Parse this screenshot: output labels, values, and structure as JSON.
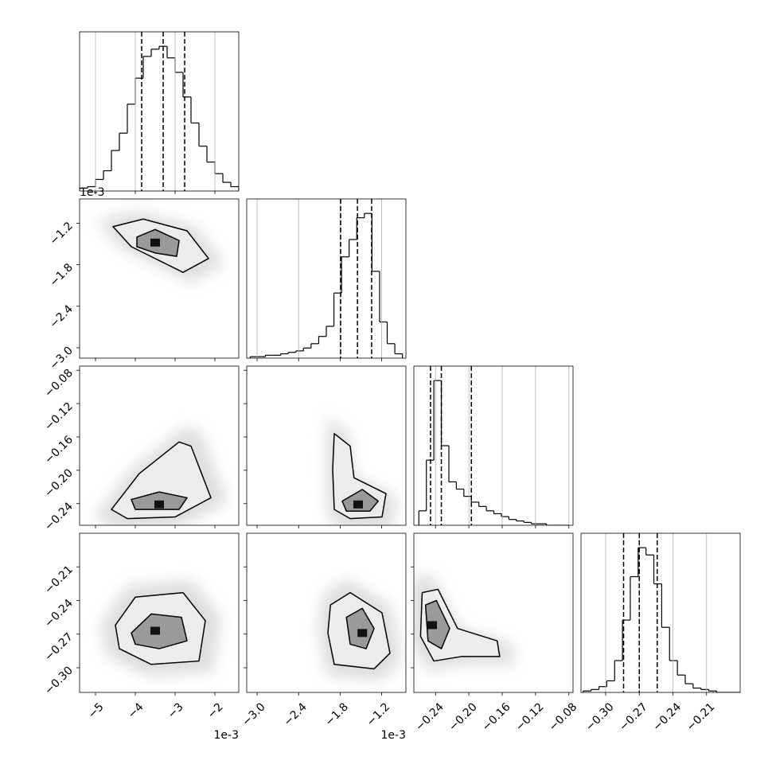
{
  "chart_data": {
    "type": "corner",
    "params": [
      {
        "lim": [
          -5.4,
          -1.4
        ],
        "ticks": [
          {
            "value": -5,
            "label": "−5"
          },
          {
            "value": -4,
            "label": "−4"
          },
          {
            "value": -3,
            "label": "−3"
          },
          {
            "value": -2,
            "label": "−2"
          }
        ],
        "offset": "1e-3"
      },
      {
        "lim": [
          -3.15,
          -0.85
        ],
        "ticks": [
          {
            "value": -3.0,
            "label": "−3.0"
          },
          {
            "value": -2.4,
            "label": "−2.4"
          },
          {
            "value": -1.8,
            "label": "−1.8"
          },
          {
            "value": -1.2,
            "label": "−1.2"
          }
        ],
        "offset": "1e-3"
      },
      {
        "lim": [
          -0.266,
          -0.075
        ],
        "ticks": [
          {
            "value": -0.24,
            "label": "−0.24"
          },
          {
            "value": -0.2,
            "label": "−0.20"
          },
          {
            "value": -0.16,
            "label": "−0.16"
          },
          {
            "value": -0.12,
            "label": "−0.12"
          },
          {
            "value": -0.08,
            "label": "−0.08"
          }
        ]
      },
      {
        "lim": [
          -0.322,
          -0.18
        ],
        "ticks": [
          {
            "value": -0.3,
            "label": "−0.30"
          },
          {
            "value": -0.27,
            "label": "−0.27"
          },
          {
            "value": -0.24,
            "label": "−0.24"
          },
          {
            "value": -0.21,
            "label": "−0.21"
          }
        ]
      }
    ],
    "histograms": [
      {
        "bins": [
          -5.4,
          -5.2,
          -5.0,
          -4.8,
          -4.6,
          -4.4,
          -4.2,
          -4.0,
          -3.8,
          -3.6,
          -3.4,
          -3.2,
          -3.0,
          -2.8,
          -2.6,
          -2.4,
          -2.2,
          -2.0,
          -1.8,
          -1.6,
          -1.4
        ],
        "counts": [
          2,
          3,
          8,
          14,
          28,
          40,
          60,
          78,
          93,
          98,
          100,
          92,
          82,
          65,
          47,
          31,
          20,
          12,
          6,
          3
        ],
        "ylim": [
          0,
          110
        ],
        "quantiles": [
          -3.84,
          -3.3,
          -2.76
        ]
      },
      {
        "bins": [
          -3.1,
          -2.99,
          -2.88,
          -2.77,
          -2.66,
          -2.55,
          -2.44,
          -2.33,
          -2.22,
          -2.11,
          -2.0,
          -1.89,
          -1.78,
          -1.67,
          -1.56,
          -1.45,
          -1.34,
          -1.23,
          -1.12,
          -1.01,
          -0.9
        ],
        "counts": [
          1,
          1,
          2,
          2,
          3,
          4,
          5,
          7,
          10,
          15,
          22,
          45,
          70,
          82,
          97,
          100,
          60,
          25,
          10,
          3
        ],
        "ylim": [
          0,
          110
        ],
        "quantiles": [
          -1.793,
          -1.55,
          -1.345
        ]
      },
      {
        "bins": [
          -0.26,
          -0.251,
          -0.242,
          -0.233,
          -0.224,
          -0.215,
          -0.206,
          -0.197,
          -0.188,
          -0.179,
          -0.17,
          -0.161,
          -0.152,
          -0.143,
          -0.134,
          -0.125,
          -0.116,
          -0.107,
          -0.098,
          -0.089,
          -0.08
        ],
        "counts": [
          10,
          45,
          100,
          55,
          30,
          25,
          20,
          16,
          13,
          10,
          8,
          6,
          4,
          3,
          2,
          1,
          1,
          0,
          0,
          0
        ],
        "ylim": [
          0,
          110
        ],
        "quantiles": [
          -0.246,
          -0.233,
          -0.197
        ]
      },
      {
        "bins": [
          -0.32,
          -0.313,
          -0.306,
          -0.299,
          -0.292,
          -0.285,
          -0.278,
          -0.271,
          -0.264,
          -0.257,
          -0.25,
          -0.243,
          -0.236,
          -0.229,
          -0.222,
          -0.215,
          -0.208,
          -0.201,
          -0.194,
          -0.187,
          -0.18
        ],
        "counts": [
          1,
          2,
          4,
          8,
          22,
          50,
          80,
          100,
          95,
          75,
          45,
          22,
          12,
          6,
          3,
          2,
          1,
          0,
          0,
          0
        ],
        "ylim": [
          0,
          110
        ],
        "quantiles": [
          -0.284,
          -0.27,
          -0.254
        ]
      }
    ],
    "pairs": [
      {
        "contours": [
          [
            [
              -4.56,
              -1.25
            ],
            [
              -3.8,
              -1.14
            ],
            [
              -2.7,
              -1.31
            ],
            [
              -2.16,
              -1.71
            ],
            [
              -2.8,
              -1.91
            ],
            [
              -4.1,
              -1.54
            ]
          ],
          [
            [
              -3.96,
              -1.4
            ],
            [
              -3.5,
              -1.29
            ],
            [
              -2.9,
              -1.45
            ],
            [
              -2.96,
              -1.68
            ],
            [
              -3.5,
              -1.63
            ],
            [
              -3.96,
              -1.54
            ]
          ]
        ],
        "peak": [
          -3.5,
          -1.48
        ]
      },
      {
        "contours": [
          [
            [
              -4.6,
              -0.247
            ],
            [
              -3.9,
              -0.204
            ],
            [
              -2.9,
              -0.166
            ],
            [
              -2.6,
              -0.171
            ],
            [
              -2.1,
              -0.233
            ],
            [
              -3.0,
              -0.256
            ],
            [
              -4.2,
              -0.258
            ]
          ],
          [
            [
              -4.1,
              -0.235
            ],
            [
              -3.4,
              -0.226
            ],
            [
              -2.7,
              -0.233
            ],
            [
              -2.9,
              -0.247
            ],
            [
              -4.0,
              -0.247
            ]
          ]
        ],
        "peak": [
          -3.4,
          -0.241
        ]
      },
      {
        "contours": [
          [
            [
              -1.885,
              -0.156
            ],
            [
              -1.655,
              -0.171
            ],
            [
              -1.6,
              -0.209
            ],
            [
              -1.138,
              -0.228
            ],
            [
              -1.195,
              -0.256
            ],
            [
              -1.655,
              -0.258
            ],
            [
              -1.885,
              -0.247
            ],
            [
              -1.908,
              -0.199
            ]
          ],
          [
            [
              -1.77,
              -0.237
            ],
            [
              -1.48,
              -0.223
            ],
            [
              -1.25,
              -0.237
            ],
            [
              -1.37,
              -0.249
            ],
            [
              -1.71,
              -0.249
            ]
          ]
        ],
        "peak": [
          -1.54,
          -0.241
        ]
      },
      {
        "contours": [
          [
            [
              -4.5,
              -0.262
            ],
            [
              -4.0,
              -0.237
            ],
            [
              -2.8,
              -0.233
            ],
            [
              -2.24,
              -0.258
            ],
            [
              -2.4,
              -0.294
            ],
            [
              -3.6,
              -0.297
            ],
            [
              -4.4,
              -0.283
            ]
          ],
          [
            [
              -4.1,
              -0.269
            ],
            [
              -3.6,
              -0.252
            ],
            [
              -2.84,
              -0.255
            ],
            [
              -2.7,
              -0.276
            ],
            [
              -3.4,
              -0.283
            ],
            [
              -4.0,
              -0.279
            ]
          ]
        ],
        "peak": [
          -3.5,
          -0.267
        ]
      },
      {
        "contours": [
          [
            [
              -1.94,
              -0.244
            ],
            [
              -1.655,
              -0.233
            ],
            [
              -1.195,
              -0.251
            ],
            [
              -1.08,
              -0.287
            ],
            [
              -1.31,
              -0.301
            ],
            [
              -1.885,
              -0.297
            ],
            [
              -1.977,
              -0.269
            ]
          ],
          [
            [
              -1.71,
              -0.255
            ],
            [
              -1.48,
              -0.247
            ],
            [
              -1.31,
              -0.265
            ],
            [
              -1.425,
              -0.283
            ],
            [
              -1.655,
              -0.279
            ]
          ]
        ],
        "peak": [
          -1.48,
          -0.269
        ]
      },
      {
        "contours": [
          [
            [
              -0.256,
              -0.233
            ],
            [
              -0.237,
              -0.23
            ],
            [
              -0.2135,
              -0.265
            ],
            [
              -0.166,
              -0.276
            ],
            [
              -0.163,
              -0.29
            ],
            [
              -0.209,
              -0.29
            ],
            [
              -0.242,
              -0.294
            ],
            [
              -0.258,
              -0.272
            ]
          ],
          [
            [
              -0.252,
              -0.244
            ],
            [
              -0.239,
              -0.24
            ],
            [
              -0.223,
              -0.265
            ],
            [
              -0.233,
              -0.283
            ],
            [
              -0.249,
              -0.276
            ]
          ]
        ],
        "peak": [
          -0.244,
          -0.262
        ]
      }
    ]
  }
}
